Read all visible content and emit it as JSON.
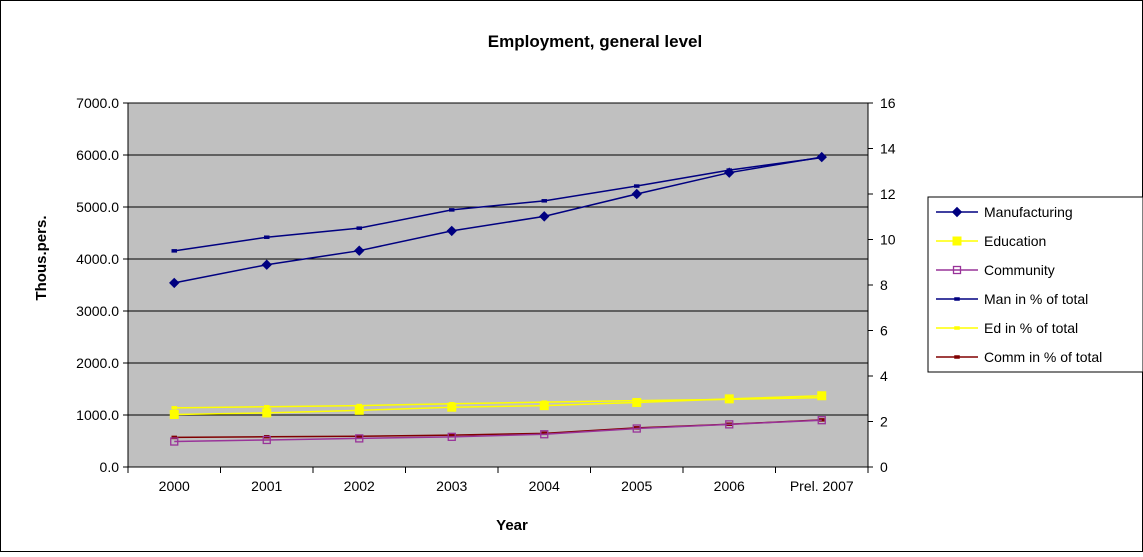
{
  "chart_data": {
    "type": "line",
    "title": "Employment, general level",
    "xlabel": "Year",
    "ylabel": "Thous.pers.",
    "y2label": "",
    "categories": [
      "2000",
      "2001",
      "2002",
      "2003",
      "2004",
      "2005",
      "2006",
      "Prel. 2007"
    ],
    "ylim": [
      0,
      7000
    ],
    "y_ticks": [
      "0.0",
      "1000.0",
      "2000.0",
      "3000.0",
      "4000.0",
      "5000.0",
      "6000.0",
      "7000.0"
    ],
    "y2lim": [
      0,
      16
    ],
    "y2_ticks": [
      "0",
      "2",
      "4",
      "6",
      "8",
      "10",
      "12",
      "14",
      "16"
    ],
    "grid": true,
    "legend_position": "right",
    "plot_background": "#c0c0c0",
    "series": [
      {
        "name": "Manufacturing",
        "axis": "left",
        "color": "#000080",
        "marker": "diamond",
        "values": [
          3540,
          3890,
          4160,
          4540,
          4820,
          5250,
          5660,
          5960
        ]
      },
      {
        "name": "Education",
        "axis": "left",
        "color": "#ffff00",
        "marker": "square",
        "values": [
          1010,
          1040,
          1090,
          1150,
          1180,
          1240,
          1310,
          1370
        ]
      },
      {
        "name": "Community",
        "axis": "left",
        "color": "#993399",
        "marker": "square-open",
        "values": [
          490,
          520,
          550,
          580,
          630,
          740,
          820,
          900
        ]
      },
      {
        "name": "Man in % of total",
        "axis": "right",
        "color": "#000080",
        "marker": "dash",
        "values": [
          9.5,
          10.1,
          10.5,
          11.3,
          11.7,
          12.35,
          13.05,
          13.6
        ]
      },
      {
        "name": "Ed in % of total",
        "axis": "right",
        "color": "#ffff00",
        "marker": "dash",
        "values": [
          2.6,
          2.65,
          2.7,
          2.78,
          2.85,
          2.92,
          2.97,
          3.05
        ]
      },
      {
        "name": "Comm in % of total",
        "axis": "right",
        "color": "#800000",
        "marker": "dash",
        "values": [
          1.3,
          1.33,
          1.35,
          1.4,
          1.48,
          1.72,
          1.88,
          2.07
        ]
      }
    ]
  }
}
